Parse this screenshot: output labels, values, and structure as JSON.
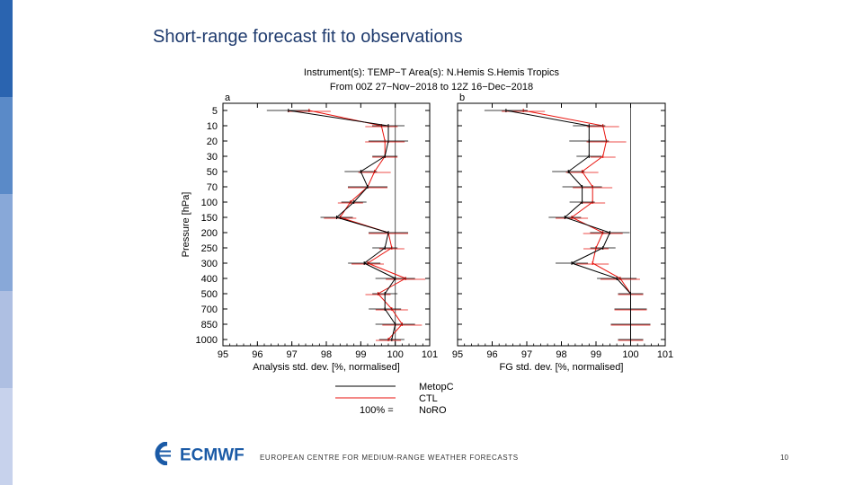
{
  "slide": {
    "title": "Short-range forecast fit to observations",
    "footer": "EUROPEAN CENTRE FOR MEDIUM-RANGE WEATHER FORECASTS",
    "page_number": "10",
    "logo_text": "ECMWF",
    "sidebar_colors": [
      "#2a64b0",
      "#5a8ac8",
      "#88a8d8",
      "#aebfe2",
      "#c7d2ec"
    ]
  },
  "chart_data": {
    "type": "line",
    "header_line1": "Instrument(s): TEMP−T        Area(s): N.Hemis S.Hemis Tropics",
    "header_line2": "From 00Z 27−Nov−2018 to 12Z 16−Dec−2018",
    "ylabel": "Pressure [hPa]",
    "pressure_levels": [
      "5",
      "10",
      "20",
      "30",
      "50",
      "70",
      "100",
      "150",
      "200",
      "250",
      "300",
      "400",
      "500",
      "700",
      "850",
      "1000"
    ],
    "xlim": [
      95,
      101
    ],
    "xticks": [
      "95",
      "96",
      "97",
      "98",
      "99",
      "100",
      "101"
    ],
    "reference_value": 100,
    "series_colors": {
      "MetopC": "#000000",
      "CTL": "#e8120c",
      "NoRO": "#e8120c"
    },
    "legend": {
      "entries": [
        "MetopC",
        "CTL",
        "NoRO"
      ],
      "ref_label": "100% ="
    },
    "panels": [
      {
        "letter": "a",
        "xlabel": "Analysis std. dev. [%, normalised]",
        "series": [
          {
            "name": "MetopC",
            "values": [
              96.9,
              99.8,
              99.8,
              99.7,
              99.0,
              99.2,
              98.8,
              98.3,
              99.8,
              99.7,
              99.1,
              100.0,
              99.7,
              99.7,
              100.0,
              99.9
            ]
          },
          {
            "name": "CTL",
            "values": [
              97.5,
              99.6,
              99.7,
              99.7,
              99.4,
              99.2,
              98.7,
              98.4,
              99.8,
              99.9,
              99.2,
              100.3,
              99.5,
              99.9,
              100.2,
              99.8
            ]
          }
        ]
      },
      {
        "letter": "b",
        "xlabel": "FG std. dev. [%, normalised]",
        "series": [
          {
            "name": "MetopC",
            "values": [
              96.4,
              98.8,
              98.8,
              98.8,
              98.2,
              98.6,
              98.6,
              98.1,
              99.4,
              99.2,
              98.3,
              99.6,
              100.0,
              100.0,
              100.0,
              100.0
            ]
          },
          {
            "name": "CTL",
            "values": [
              96.9,
              99.2,
              99.3,
              99.2,
              98.6,
              98.9,
              98.9,
              98.3,
              99.2,
              99.0,
              98.9,
              99.7,
              100.0,
              100.0,
              100.0,
              100.0
            ]
          }
        ]
      }
    ]
  }
}
